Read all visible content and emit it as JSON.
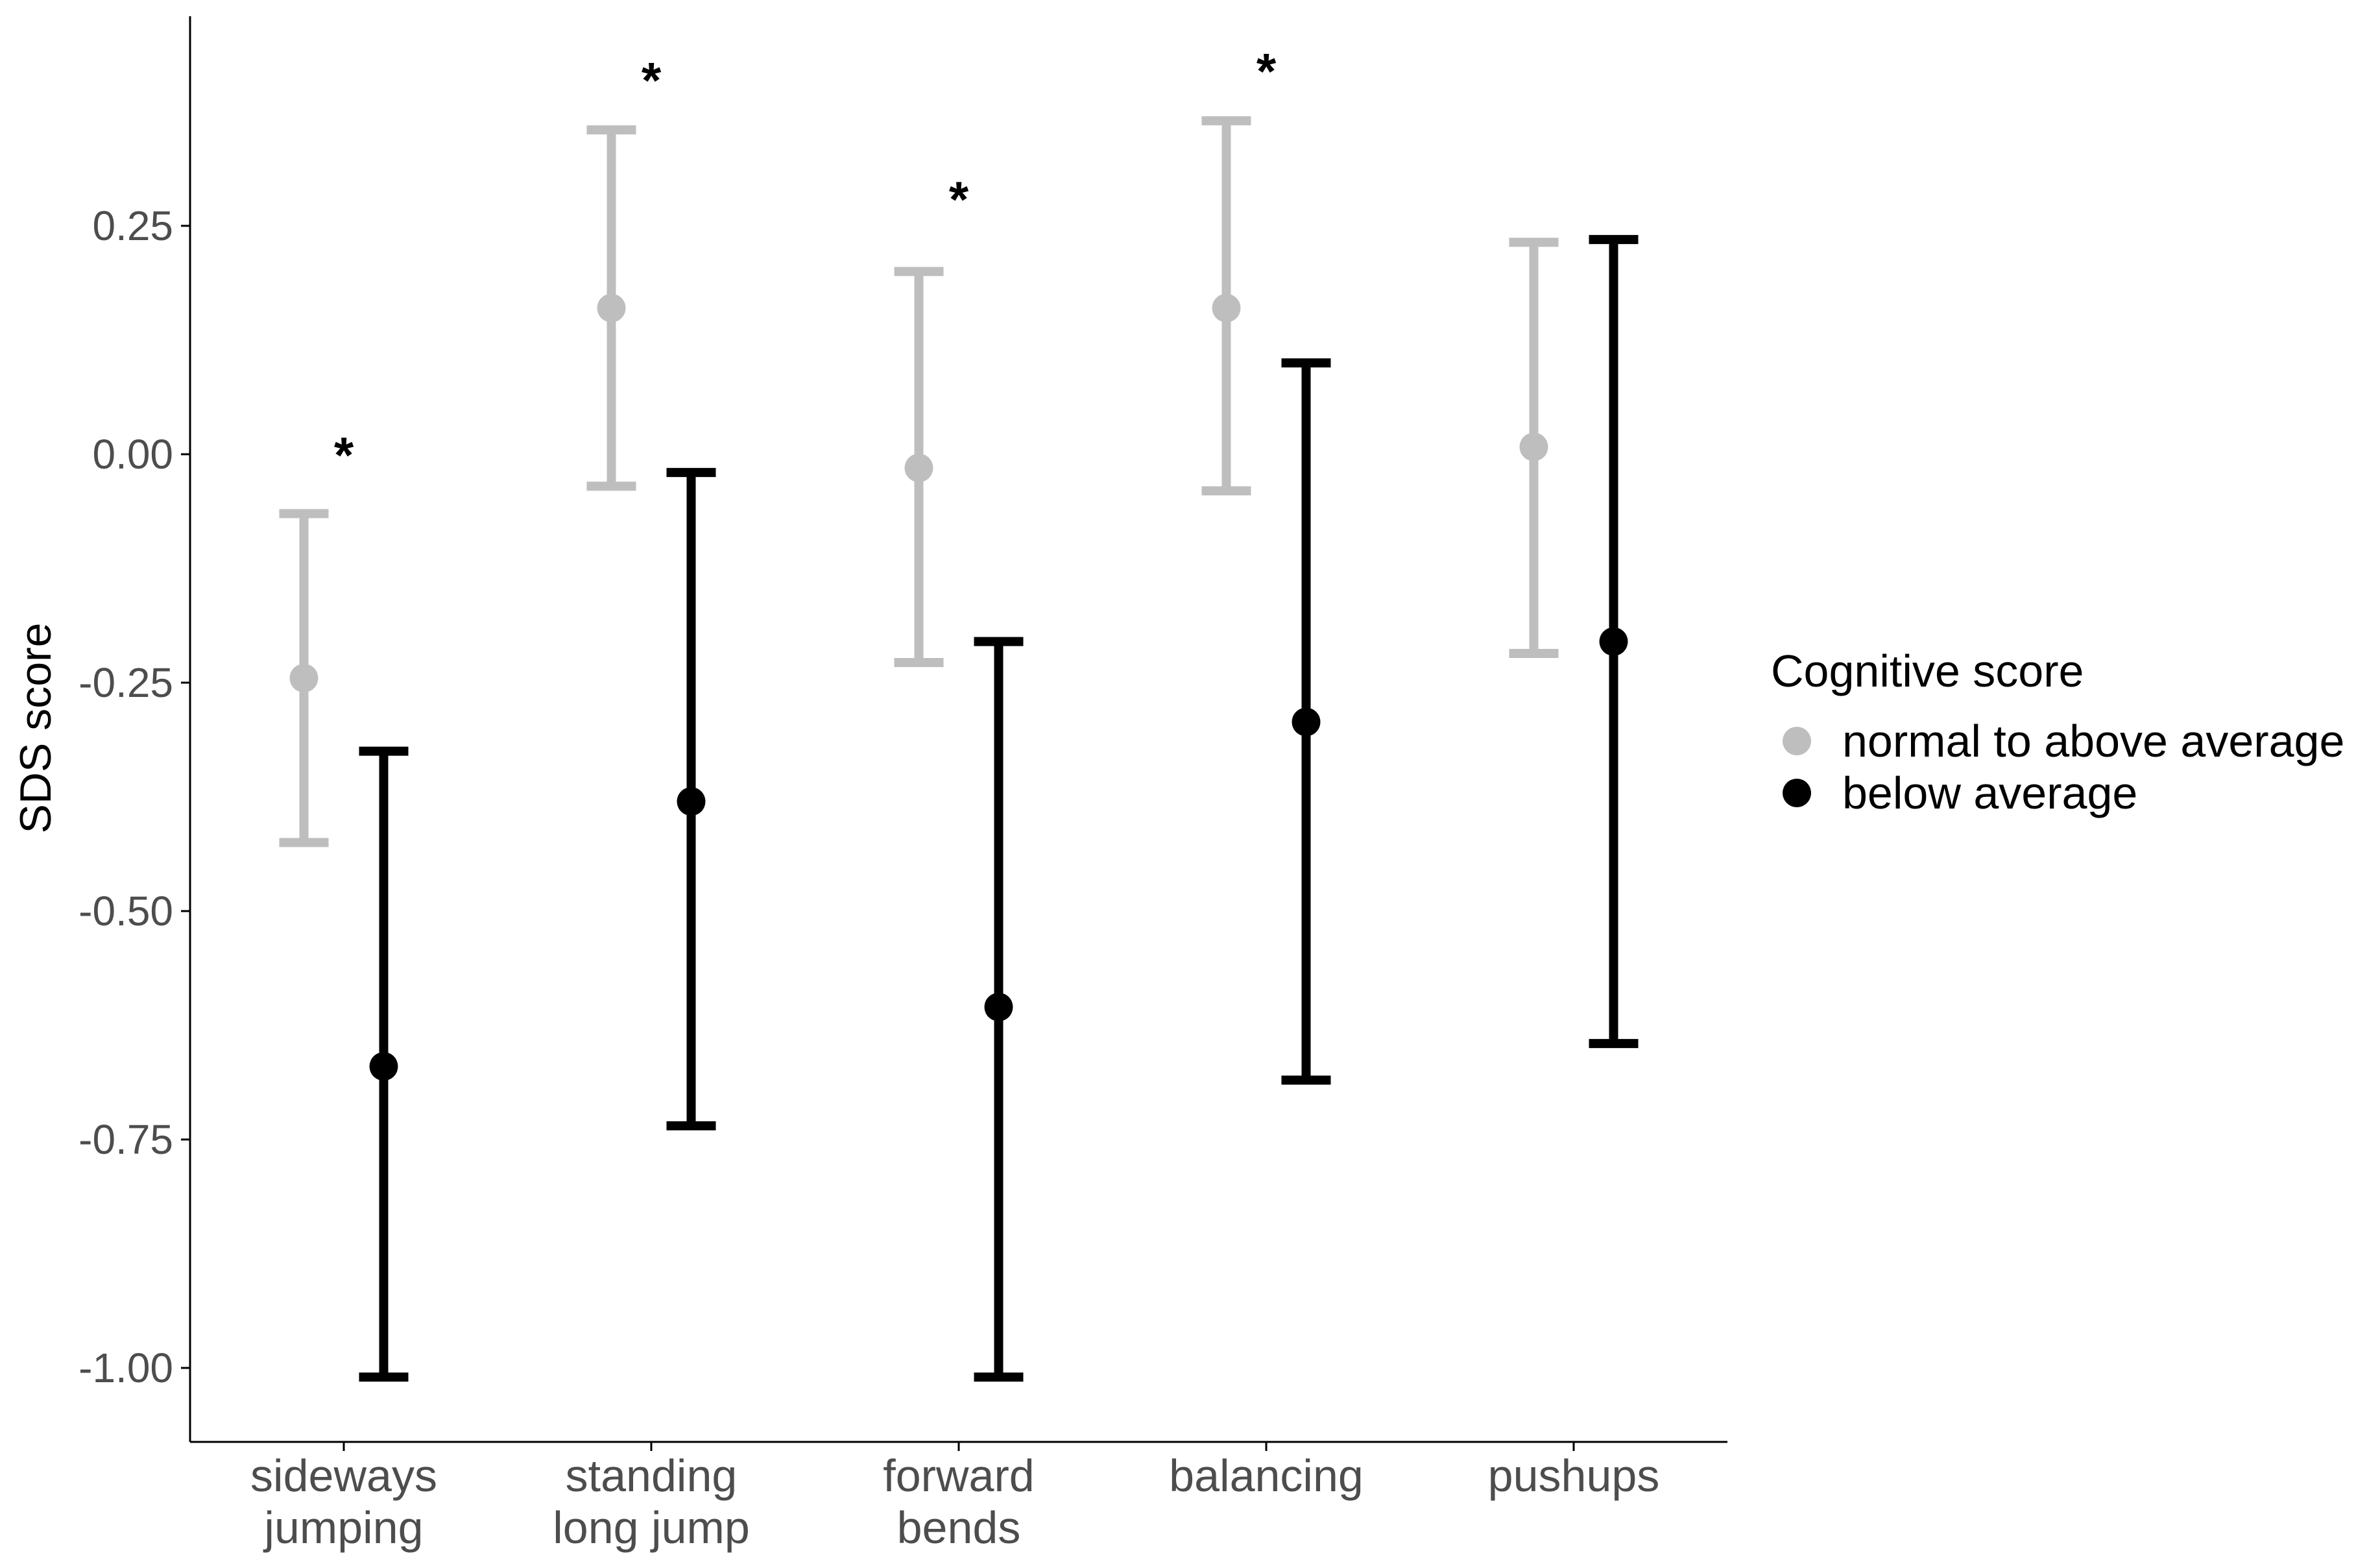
{
  "chart_data": {
    "type": "scatter",
    "subtype": "point-range",
    "title": "",
    "xlabel": "",
    "ylabel": "SDS score",
    "ylim": [
      -1.08,
      0.48
    ],
    "yticks": [
      -1.0,
      -0.75,
      -0.5,
      -0.25,
      0.0,
      0.25
    ],
    "ytick_labels": [
      "-1.00",
      "-0.75",
      "-0.50",
      "-0.25",
      "0.00",
      "0.25"
    ],
    "grid": false,
    "categories": [
      [
        "sideways",
        "jumping"
      ],
      [
        "standing",
        "long jump"
      ],
      [
        "forward",
        "bends"
      ],
      [
        "balancing"
      ],
      [
        "pushups"
      ]
    ],
    "legend": {
      "title": "Cognitive score",
      "placement": "right"
    },
    "series": [
      {
        "name": "normal to above average",
        "color": "#bebebe",
        "mean": [
          -0.245,
          0.16,
          -0.015,
          0.16,
          0.008
        ],
        "lower": [
          -0.425,
          -0.035,
          -0.228,
          -0.04,
          -0.218
        ],
        "upper": [
          -0.065,
          0.355,
          0.2,
          0.365,
          0.232
        ]
      },
      {
        "name": "below average",
        "color": "#000000",
        "mean": [
          -0.67,
          -0.38,
          -0.605,
          -0.293,
          -0.205
        ],
        "lower": [
          -1.01,
          -0.735,
          -1.01,
          -0.685,
          -0.645
        ],
        "upper": [
          -0.325,
          -0.02,
          -0.205,
          0.1,
          0.235
        ]
      }
    ],
    "annotations": [
      {
        "category_index": 0,
        "text": "*",
        "y": 0.0
      },
      {
        "category_index": 1,
        "text": "*",
        "y": 0.41
      },
      {
        "category_index": 2,
        "text": "*",
        "y": 0.28
      },
      {
        "category_index": 3,
        "text": "*",
        "y": 0.42
      }
    ]
  }
}
